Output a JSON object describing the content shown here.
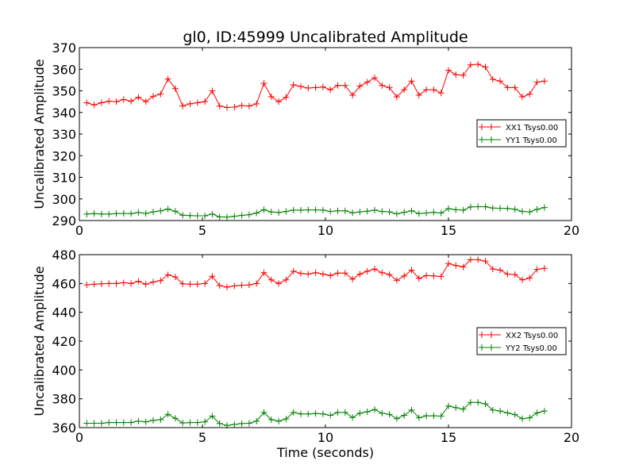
{
  "chart_data": [
    {
      "type": "line",
      "title": "gl0, ID:45999 Uncalibrated Amplitude",
      "xlabel": "",
      "ylabel": "Uncalibrated Amplitude",
      "xlim": [
        0,
        20
      ],
      "ylim": [
        290,
        370
      ],
      "xticks": [
        0,
        5,
        10,
        15,
        20
      ],
      "yticks": [
        290,
        300,
        310,
        320,
        330,
        340,
        350,
        360,
        370
      ],
      "legend_position": "center-right",
      "x": [
        0.3,
        0.6,
        0.9,
        1.2,
        1.5,
        1.8,
        2.1,
        2.4,
        2.7,
        3.0,
        3.3,
        3.6,
        3.9,
        4.2,
        4.5,
        4.8,
        5.1,
        5.4,
        5.7,
        6.0,
        6.3,
        6.6,
        6.9,
        7.2,
        7.5,
        7.8,
        8.1,
        8.4,
        8.7,
        9.0,
        9.3,
        9.6,
        9.9,
        10.2,
        10.5,
        10.8,
        11.1,
        11.4,
        11.7,
        12.0,
        12.3,
        12.6,
        12.9,
        13.2,
        13.5,
        13.8,
        14.1,
        14.4,
        14.7,
        15.0,
        15.3,
        15.6,
        15.9,
        16.2,
        16.5,
        16.8,
        17.1,
        17.4,
        17.7,
        18.0,
        18.3,
        18.6,
        18.9
      ],
      "series": [
        {
          "name": "XX1 Tsys0.00",
          "color": "#ff0000",
          "values": [
            344.5,
            343.5,
            344.5,
            345.2,
            345,
            346,
            345.2,
            347,
            345,
            347.5,
            348.5,
            355.5,
            351,
            343,
            344,
            344.5,
            345,
            350,
            343,
            342.3,
            342.5,
            343.2,
            343,
            344,
            353.5,
            347.3,
            345,
            347,
            352.8,
            352,
            351.3,
            351.5,
            351.8,
            350.5,
            352.5,
            352.5,
            348,
            352.2,
            354,
            356,
            352.5,
            351.5,
            347.2,
            350.5,
            354.5,
            348,
            350.5,
            350.5,
            349,
            359.5,
            357.5,
            357.2,
            362,
            362.3,
            361,
            355.3,
            354.5,
            351.5,
            351.5,
            347.2,
            348.5,
            354,
            354.5
          ]
        },
        {
          "name": "YY1 Tsys0.00",
          "color": "#008000",
          "values": [
            293,
            293.2,
            293,
            293,
            293.2,
            293.3,
            293.2,
            293.7,
            293.3,
            294,
            294.5,
            295.3,
            294.3,
            292.5,
            292.3,
            292.2,
            292.2,
            293,
            291.7,
            291.6,
            292,
            292.4,
            292.7,
            293.5,
            295,
            294,
            293.7,
            294.2,
            294.8,
            294.8,
            294.9,
            294.9,
            294.8,
            294.2,
            294.5,
            294.5,
            293.6,
            294,
            294.3,
            294.8,
            294.2,
            294,
            293.1,
            293.8,
            294.5,
            293.2,
            293.5,
            293.8,
            293.5,
            295.5,
            295,
            294.8,
            296.3,
            296.4,
            296.4,
            295.8,
            295.7,
            295.6,
            295.2,
            294.2,
            294,
            295.2,
            296
          ]
        }
      ]
    },
    {
      "type": "line",
      "title": "",
      "xlabel": "Time (seconds)",
      "ylabel": "Uncalibrated Amplitude",
      "xlim": [
        0,
        20
      ],
      "ylim": [
        360,
        480
      ],
      "xticks": [
        0,
        5,
        10,
        15,
        20
      ],
      "yticks": [
        360,
        380,
        400,
        420,
        440,
        460,
        480
      ],
      "legend_position": "center-right",
      "x": [
        0.3,
        0.6,
        0.9,
        1.2,
        1.5,
        1.8,
        2.1,
        2.4,
        2.7,
        3.0,
        3.3,
        3.6,
        3.9,
        4.2,
        4.5,
        4.8,
        5.1,
        5.4,
        5.7,
        6.0,
        6.3,
        6.6,
        6.9,
        7.2,
        7.5,
        7.8,
        8.1,
        8.4,
        8.7,
        9.0,
        9.3,
        9.6,
        9.9,
        10.2,
        10.5,
        10.8,
        11.1,
        11.4,
        11.7,
        12.0,
        12.3,
        12.6,
        12.9,
        13.2,
        13.5,
        13.8,
        14.1,
        14.4,
        14.7,
        15.0,
        15.3,
        15.6,
        15.9,
        16.2,
        16.5,
        16.8,
        17.1,
        17.4,
        17.7,
        18.0,
        18.3,
        18.6,
        18.9
      ],
      "series": [
        {
          "name": "XX2 Tsys0.00",
          "color": "#ff0000",
          "values": [
            459,
            459.5,
            459.8,
            460,
            460,
            460.5,
            460,
            461.5,
            459.5,
            461,
            462,
            466,
            464.5,
            459.8,
            459.5,
            459.5,
            460,
            465,
            458.5,
            457.5,
            458.3,
            458.8,
            459,
            460,
            467.5,
            462.5,
            460,
            462.5,
            468.5,
            467,
            466.5,
            467.5,
            466.5,
            465.5,
            467.2,
            467.2,
            463,
            466.5,
            468.5,
            470,
            467.5,
            466.2,
            462.2,
            465.2,
            469.3,
            463.5,
            465.5,
            465.3,
            464.8,
            473.8,
            472.5,
            471.5,
            476.5,
            476.5,
            475.5,
            470,
            469.3,
            466.5,
            466.2,
            462.5,
            463.8,
            469.8,
            470.5
          ]
        },
        {
          "name": "YY2 Tsys0.00",
          "color": "#008000",
          "values": [
            363,
            363,
            363,
            363.5,
            363.5,
            363.5,
            363.5,
            364.5,
            364,
            365,
            365.5,
            369.2,
            366.5,
            363.2,
            363.5,
            363.5,
            364,
            368,
            362.8,
            361.5,
            362.2,
            362.8,
            363,
            364.5,
            370.5,
            365.5,
            364.5,
            366,
            370.5,
            369.5,
            369.5,
            369.8,
            369.5,
            368.5,
            370.5,
            370.5,
            367,
            370,
            371,
            372.5,
            370,
            369.2,
            366.2,
            368.5,
            372.2,
            366.8,
            368.2,
            368.2,
            368,
            375,
            373.8,
            372.8,
            377.5,
            377.5,
            376.5,
            372.2,
            371.5,
            370.2,
            369,
            366.2,
            366.8,
            370.2,
            371.5
          ]
        }
      ]
    }
  ]
}
